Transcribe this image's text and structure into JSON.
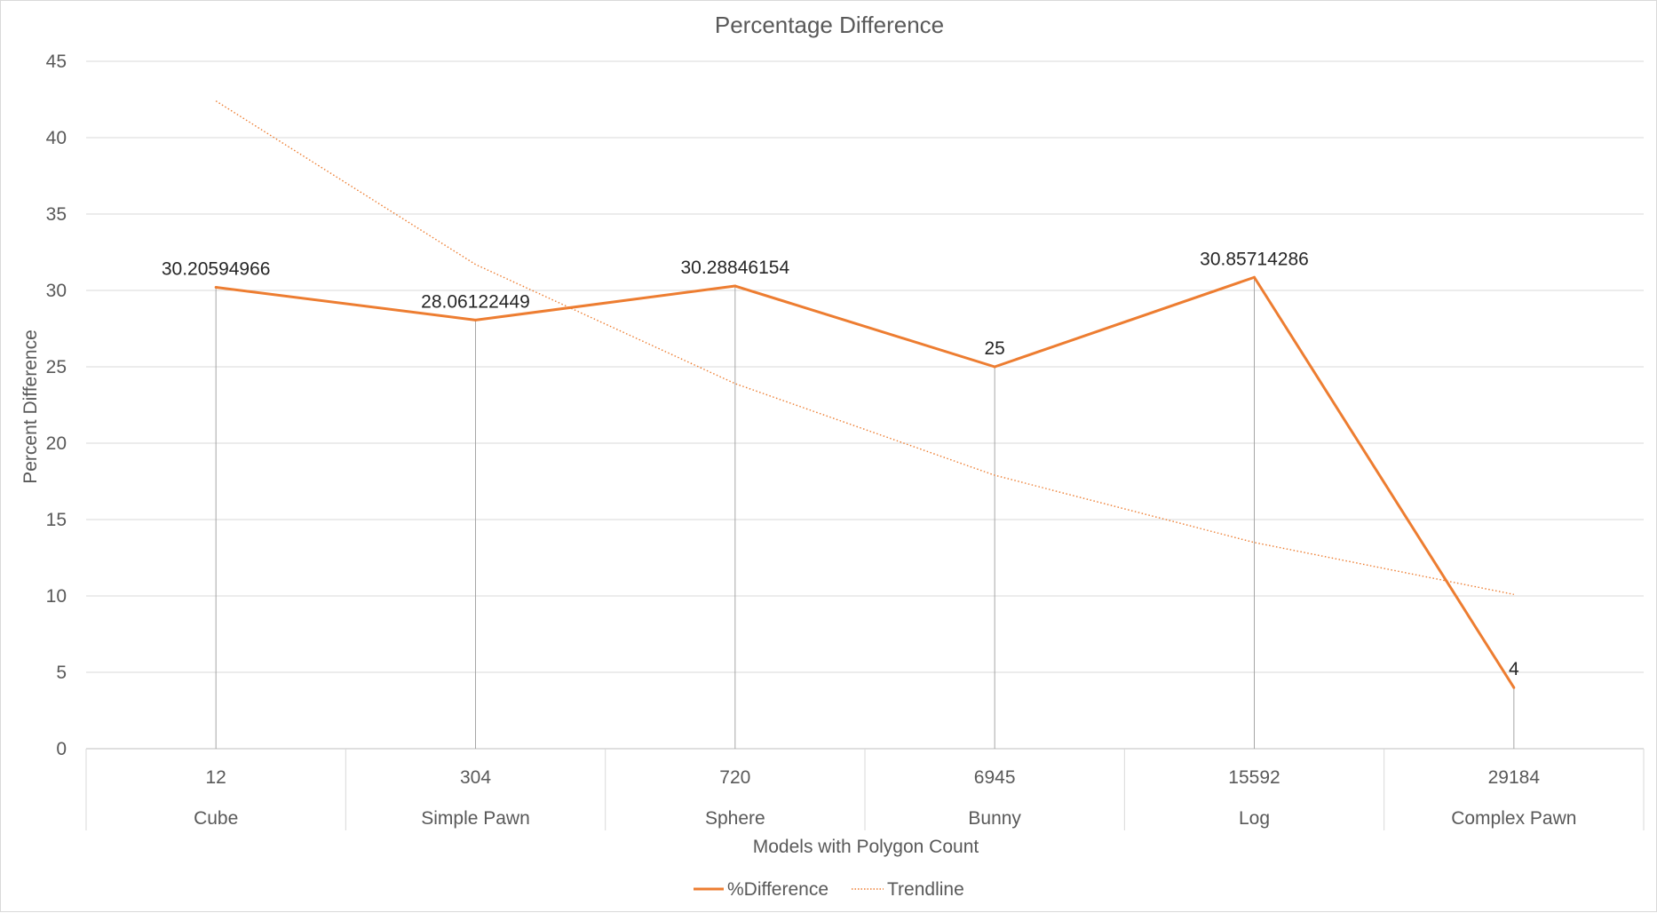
{
  "chart_data": {
    "type": "line",
    "title": "Percentage Difference",
    "xlabel": "Models with Polygon Count",
    "ylabel": "Percent Difference",
    "ylim": [
      0,
      45
    ],
    "yticks": [
      0,
      5,
      10,
      15,
      20,
      25,
      30,
      35,
      40,
      45
    ],
    "categories": [
      {
        "count": "12",
        "name": "Cube"
      },
      {
        "count": "304",
        "name": "Simple Pawn"
      },
      {
        "count": "720",
        "name": "Sphere"
      },
      {
        "count": "6945",
        "name": "Bunny"
      },
      {
        "count": "15592",
        "name": "Log"
      },
      {
        "count": "29184",
        "name": "Complex Pawn"
      }
    ],
    "series": [
      {
        "name": "%Difference",
        "values": [
          30.20594966,
          28.06122449,
          30.28846154,
          25,
          30.85714286,
          4
        ],
        "data_labels": [
          "30.20594966",
          "28.06122449",
          "30.28846154",
          "25",
          "30.85714286",
          "4"
        ],
        "color": "#ED7D31",
        "drop_lines": true
      },
      {
        "name": "Trendline",
        "values": [
          42.4,
          31.7,
          23.9,
          17.9,
          13.5,
          10.1
        ],
        "color": "#ED7D31",
        "style": "dotted"
      }
    ],
    "grid": true,
    "legend": "bottom"
  }
}
